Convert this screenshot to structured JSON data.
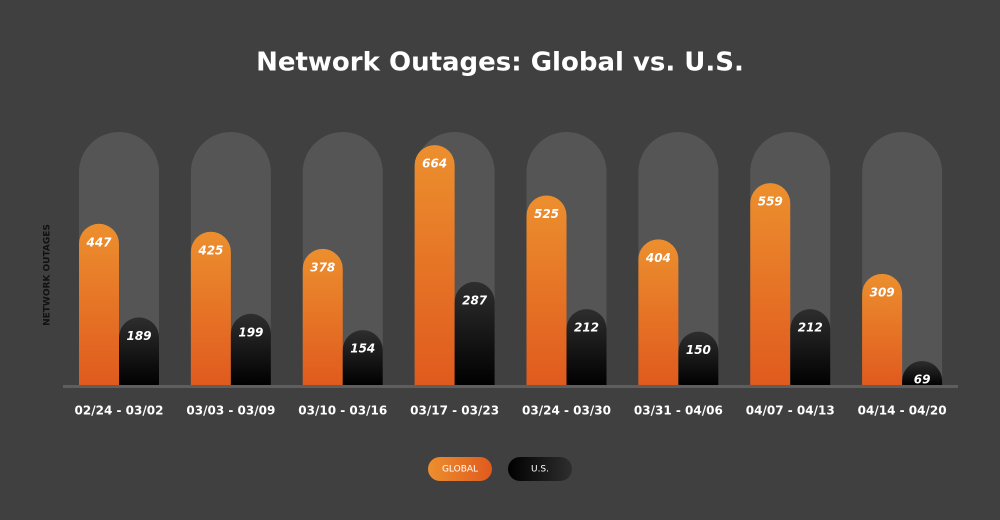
{
  "chart_data": {
    "type": "bar",
    "title": "Network Outages: Global vs. U.S.",
    "y_label": "NETWORK OUTAGES",
    "categories": [
      "02/24 - 03/02",
      "03/03 - 03/09",
      "03/10 - 03/16",
      "03/17 - 03/23",
      "03/24 - 03/30",
      "03/31 - 04/06",
      "04/07 - 04/13",
      "04/14 - 04/20"
    ],
    "series": [
      {
        "name": "GLOBAL",
        "color": "#e57a28",
        "values": [
          447,
          425,
          378,
          664,
          525,
          404,
          559,
          309
        ]
      },
      {
        "name": "U.S.",
        "color": "#151515",
        "values": [
          189,
          199,
          154,
          287,
          212,
          150,
          212,
          69
        ]
      }
    ],
    "ylim": [
      0,
      700
    ]
  }
}
